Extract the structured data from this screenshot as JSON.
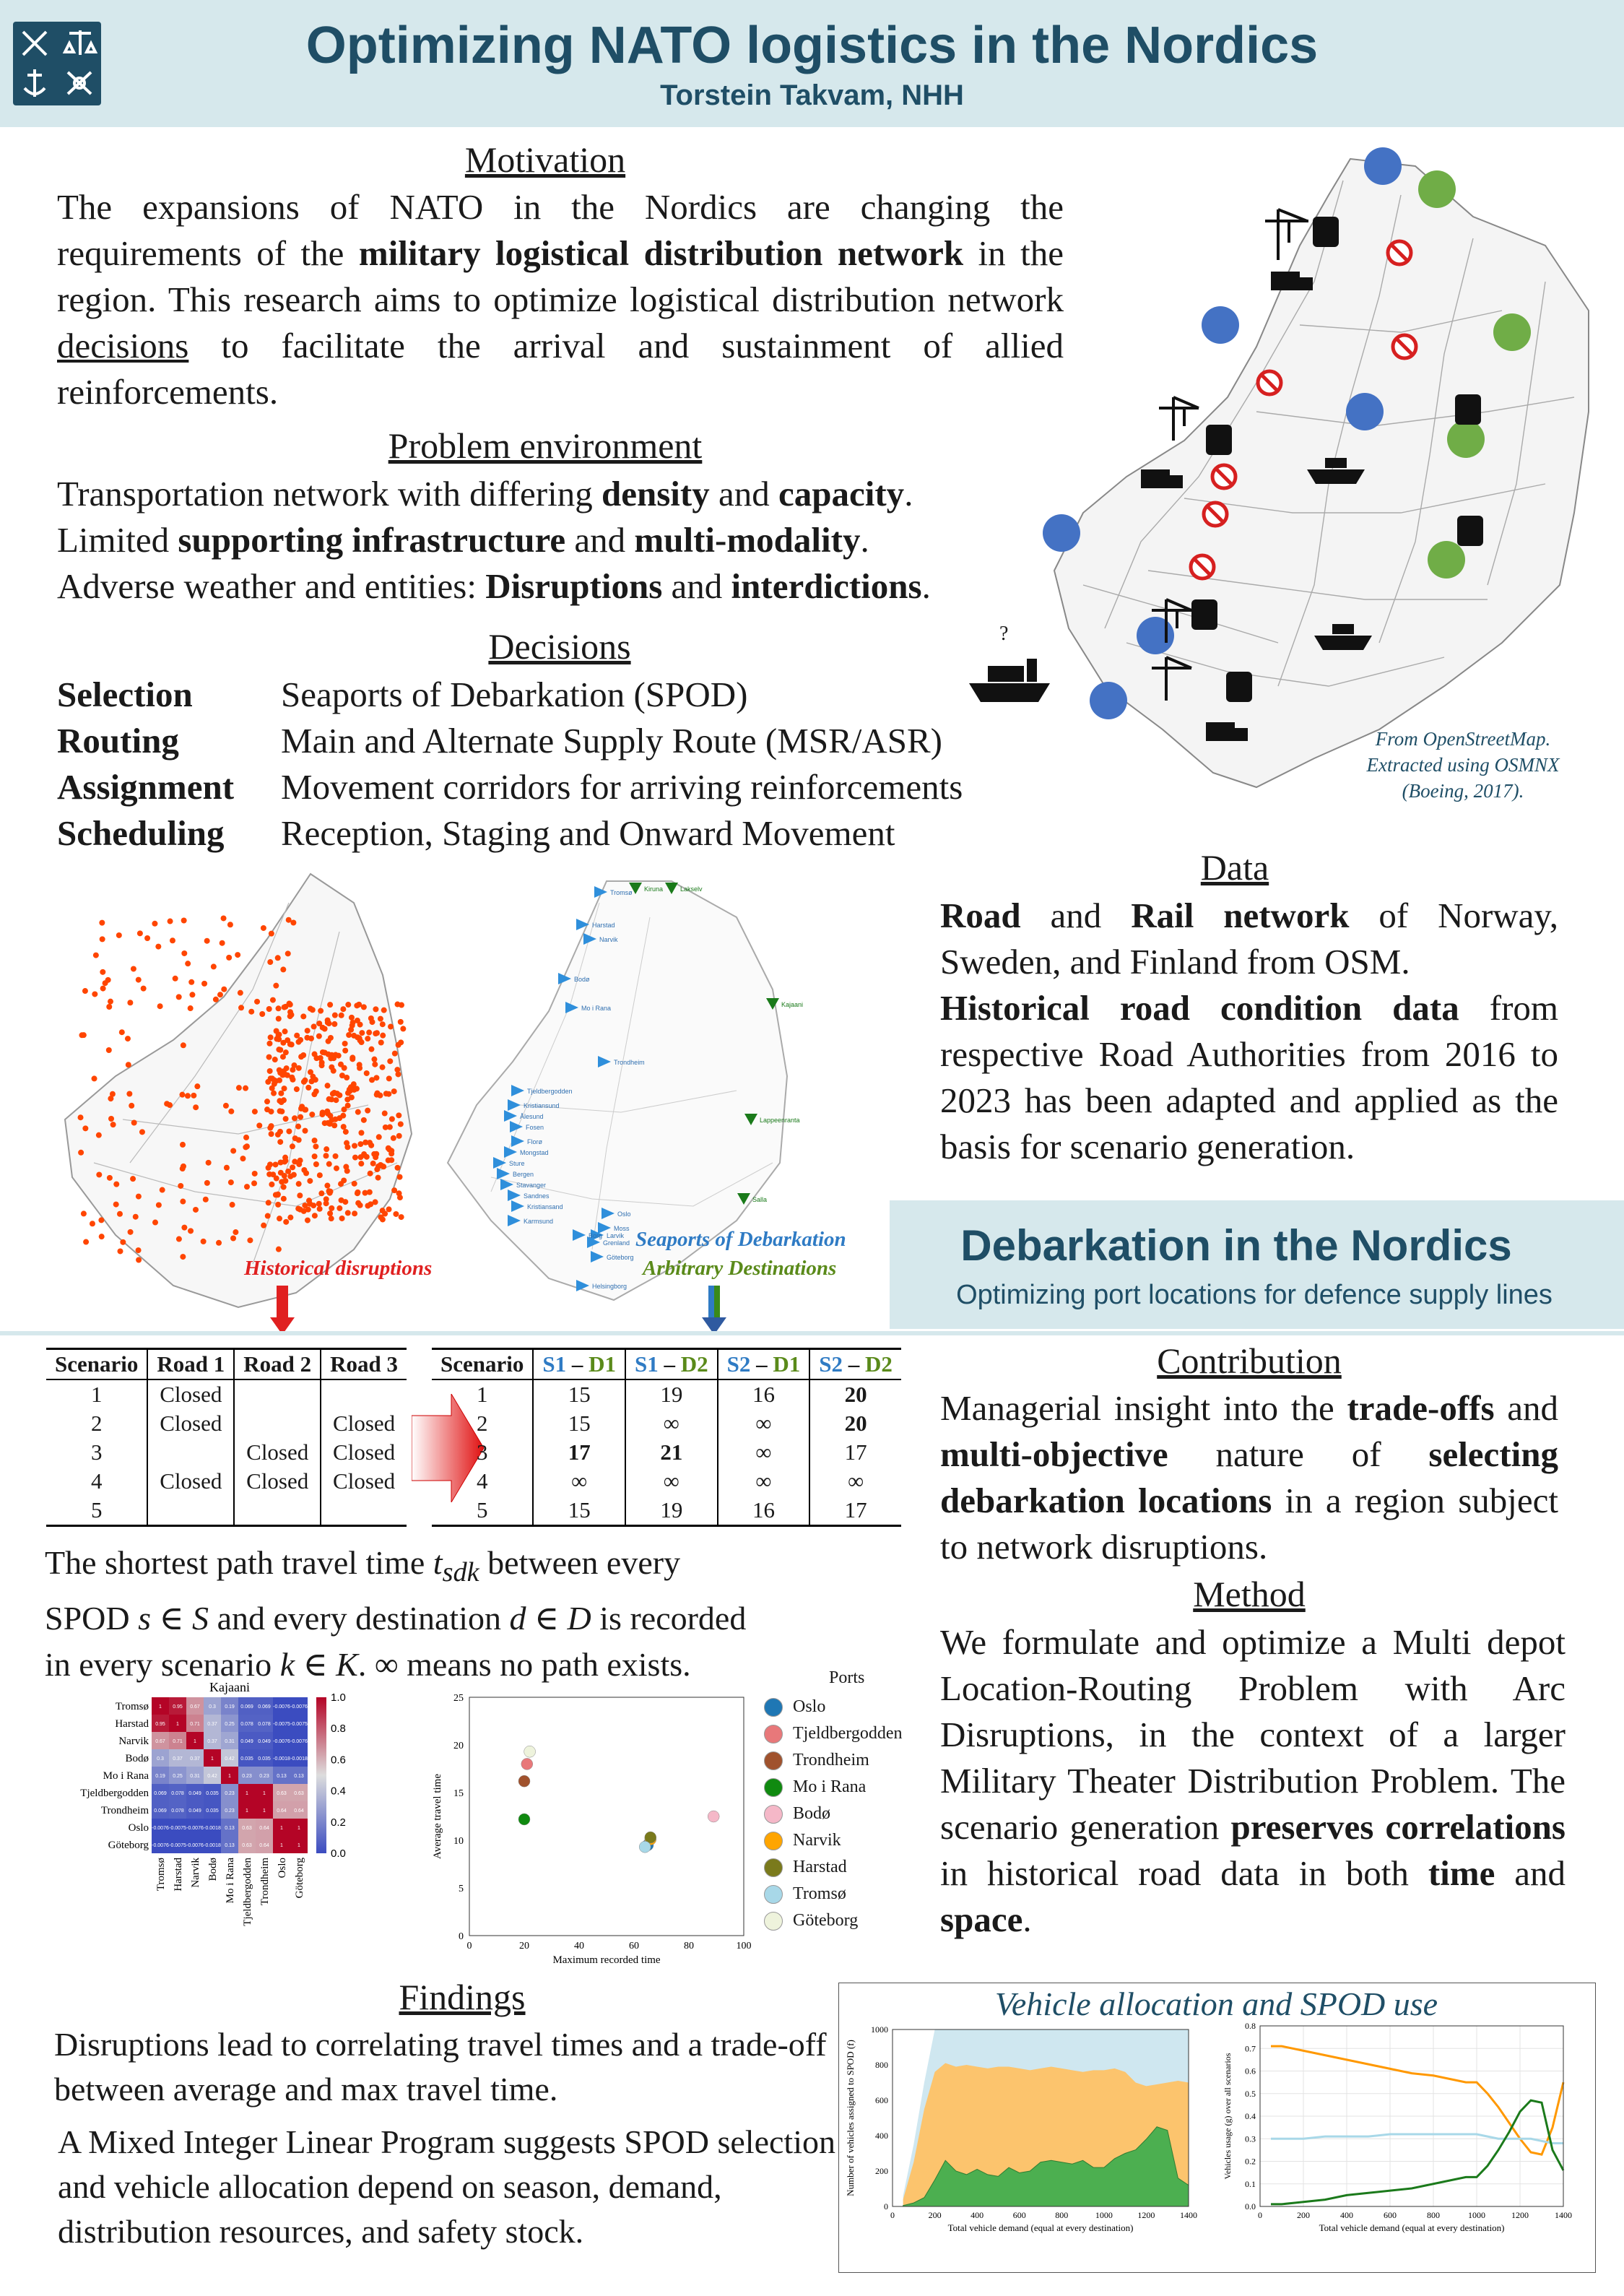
{
  "header": {
    "title": "Optimizing NATO logistics in the Nordics",
    "author": "Torstein Takvam, NHH"
  },
  "motivation": {
    "heading": "Motivation",
    "p1": "The expansions of NATO in the Nordics are changing the requirements of the ",
    "p1_bold": "military logistical distribution network",
    "p2": " in the region. This research aims to optimize logistical distribution network ",
    "p2_underline": "decisions",
    "p3": " to facilitate the arrival and sustainment of allied reinforcements."
  },
  "problem": {
    "heading": "Problem environment",
    "l1a": "Transportation network with differing ",
    "l1b": "density",
    "l1c": " and ",
    "l1d": "capacity",
    "l1e": ".",
    "l2a": "Limited ",
    "l2b": "supporting infrastructure",
    "l2c": " and ",
    "l2d": "multi-modality",
    "l2e": ".",
    "l3a": "Adverse weather and entities: ",
    "l3b": "Disruptions",
    "l3c": " and ",
    "l3d": "interdictions",
    "l3e": "."
  },
  "decisions": {
    "heading": "Decisions",
    "items": [
      {
        "term": "Selection",
        "desc": "Seaports of Debarkation (SPOD)"
      },
      {
        "term": "Routing",
        "desc": "Main and Alternate Supply Route (MSR/ASR)"
      },
      {
        "term": "Assignment",
        "desc": "Movement corridors for arriving reinforcements"
      },
      {
        "term": "Scheduling",
        "desc": "Reception, Staging and Onward Movement"
      }
    ]
  },
  "map_caption": {
    "l1": "From OpenStreetMap.",
    "l2": "Extracted using OSMNX",
    "l3": "(Boeing, 2017).",
    "question": "?"
  },
  "data_section": {
    "heading": "Data",
    "d1_bold1": "Road",
    "d1_and": " and ",
    "d1_bold2": "Rail network",
    "d1_rest": " of Norway, Sweden, and Finland from OSM.",
    "d2_bold": "Historical road condition data",
    "d2_rest": " from respective Road Authorities from 2016 to 2023 has been adapted and applied as the basis for scenario generation."
  },
  "maps": {
    "historical_label": "Historical disruptions",
    "spod_label": "Seaports of Debarkation",
    "dest_label": "Arbitrary Destinations",
    "port_names": [
      "Tromsø",
      "Harstad",
      "Narvik",
      "Bodø",
      "Mo i Rana",
      "Trondheim",
      "Tjeldbergodden",
      "Kristiansund",
      "Ålesund",
      "Fosen",
      "Florø",
      "Mongstad",
      "Sture",
      "Bergen",
      "Stavanger",
      "Sandnes",
      "Kristiansand",
      "Oslo",
      "Moss",
      "Larvik",
      "Grenland",
      "Karmsund",
      "Borg",
      "Göteborg",
      "Helsingborg"
    ],
    "dest_names": [
      "Kiruna",
      "Lakselv",
      "Kajaani",
      "Lappeenranta",
      "Salla"
    ]
  },
  "debarkation": {
    "title": "Debarkation in the Nordics",
    "subtitle": "Optimizing port locations for defence supply lines"
  },
  "table1": {
    "headers": [
      "Scenario",
      "Road 1",
      "Road 2",
      "Road 3"
    ],
    "rows": [
      [
        "1",
        "Closed",
        "",
        ""
      ],
      [
        "2",
        "Closed",
        "",
        "Closed"
      ],
      [
        "3",
        "",
        "Closed",
        "Closed"
      ],
      [
        "4",
        "Closed",
        "Closed",
        "Closed"
      ],
      [
        "5",
        "",
        "",
        ""
      ]
    ]
  },
  "table2": {
    "h_scenario": "Scenario",
    "cols": [
      {
        "s": "S1",
        "dash": " – ",
        "d": "D1"
      },
      {
        "s": "S1",
        "dash": " – ",
        "d": "D2"
      },
      {
        "s": "S2",
        "dash": " – ",
        "d": "D1"
      },
      {
        "s": "S2",
        "dash": " – ",
        "d": "D2"
      }
    ],
    "rows": [
      {
        "c": [
          "1",
          "15",
          "19",
          "16",
          "20"
        ],
        "b": [
          false,
          false,
          false,
          false,
          true
        ]
      },
      {
        "c": [
          "2",
          "15",
          "∞",
          "∞",
          "20"
        ],
        "b": [
          false,
          false,
          false,
          false,
          true
        ]
      },
      {
        "c": [
          "3",
          "17",
          "21",
          "∞",
          "17"
        ],
        "b": [
          false,
          true,
          true,
          false,
          false
        ]
      },
      {
        "c": [
          "4",
          "∞",
          "∞",
          "∞",
          "∞"
        ],
        "b": [
          false,
          false,
          false,
          false,
          false
        ]
      },
      {
        "c": [
          "5",
          "15",
          "19",
          "16",
          "17"
        ],
        "b": [
          false,
          false,
          false,
          false,
          false
        ]
      }
    ]
  },
  "shortest_path": {
    "l1a": "The shortest path travel time ",
    "l1m": "t",
    "l1sub": "sdk",
    "l1b": " between every",
    "l2a": "SPOD ",
    "l2m": "s ∈ S",
    "l2b": " and every destination ",
    "l2m2": "d ∈ D",
    "l2c": " is recorded",
    "l3a": "in every scenario ",
    "l3m": "k ∈ K",
    "l3b": ". ∞ means no path exists."
  },
  "contribution": {
    "heading": "Contribution",
    "t1": "Managerial insight into the ",
    "b1": "trade-offs",
    "t2": " and ",
    "b2": "multi-objective",
    "t3": " nature of ",
    "b3": "selecting debarkation locations",
    "t4": " in a region subject to network disruptions."
  },
  "method": {
    "heading": "Method",
    "t1": "We formulate and optimize a Multi depot Location-Routing Problem with Arc Disruptions, in the context of a larger Military Theater Distribution Problem. The scenario generation ",
    "b1": "preserves correlations",
    "t2": " in historical road data in both ",
    "b2": "time",
    "t3": " and ",
    "b3": "space",
    "t4": "."
  },
  "findings": {
    "heading": "Findings",
    "p1": "Disruptions lead to correlating travel times and a trade-off between average and max travel time.",
    "p2": "A Mixed Integer Linear Program suggests SPOD selection and vehicle allocation depend on season, demand, distribution resources, and safety stock."
  },
  "heatmap": {
    "title": "Kajaani",
    "labels": [
      "Tromsø",
      "Harstad",
      "Narvik",
      "Bodø",
      "Mo i Rana",
      "Tjeldbergodden",
      "Trondheim",
      "Oslo",
      "Göteborg"
    ],
    "matrix": [
      [
        1,
        0.95,
        0.67,
        0.3,
        0.19,
        0.069,
        0.069,
        -0.0076,
        -0.0076
      ],
      [
        0.95,
        1,
        0.71,
        0.37,
        0.25,
        0.078,
        0.078,
        -0.0075,
        -0.0075
      ],
      [
        0.67,
        0.71,
        1,
        0.37,
        0.31,
        0.049,
        0.049,
        -0.0076,
        -0.0076
      ],
      [
        0.3,
        0.37,
        0.37,
        1,
        0.42,
        0.035,
        0.035,
        -0.0018,
        -0.0018
      ],
      [
        0.19,
        0.25,
        0.31,
        0.42,
        1,
        0.23,
        0.23,
        0.13,
        0.13
      ],
      [
        0.069,
        0.078,
        0.049,
        0.035,
        0.23,
        1,
        1,
        0.63,
        0.63
      ],
      [
        0.069,
        0.078,
        0.049,
        0.035,
        0.23,
        1,
        1,
        0.64,
        0.64
      ],
      [
        -0.0076,
        -0.0075,
        -0.0076,
        -0.0018,
        0.13,
        0.63,
        0.64,
        1,
        1
      ],
      [
        -0.0076,
        -0.0075,
        -0.0076,
        -0.0018,
        0.13,
        0.63,
        0.64,
        1,
        1
      ]
    ],
    "colorbar_ticks": [
      "1.0",
      "0.8",
      "0.6",
      "0.4",
      "0.2",
      "0.0"
    ],
    "low_color": "#3b4cc0",
    "high_color": "#b40426"
  },
  "chart_data": [
    {
      "type": "scatter",
      "title": "",
      "xlabel": "Maximum recorded time",
      "ylabel": "Average travel time",
      "xlim": [
        0,
        100
      ],
      "ylim": [
        0,
        25
      ],
      "xticks": [
        "0",
        "20",
        "40",
        "60",
        "80",
        "100"
      ],
      "yticks": [
        "0",
        "5",
        "10",
        "15",
        "20",
        "25"
      ],
      "legend_title": "Ports",
      "series": [
        {
          "name": "Oslo",
          "color": "#1f77b4",
          "points": [
            [
              65,
              9.5
            ]
          ]
        },
        {
          "name": "Tjeldbergodden",
          "color": "#e8787a",
          "points": [
            [
              21,
              18
            ]
          ]
        },
        {
          "name": "Trondheim",
          "color": "#a0522d",
          "points": [
            [
              20,
              16.2
            ]
          ]
        },
        {
          "name": "Mo i Rana",
          "color": "#108a10",
          "points": [
            [
              20,
              12.2
            ]
          ]
        },
        {
          "name": "Bodø",
          "color": "#f5b8c8",
          "points": [
            [
              89,
              12.5
            ]
          ]
        },
        {
          "name": "Narvik",
          "color": "#ffa500",
          "points": [
            [
              66,
              10.1
            ]
          ]
        },
        {
          "name": "Harstad",
          "color": "#7a7a1c",
          "points": [
            [
              66,
              10.3
            ]
          ]
        },
        {
          "name": "Tromsø",
          "color": "#a8d8e8",
          "points": [
            [
              64,
              9.3
            ]
          ]
        },
        {
          "name": "Göteborg",
          "color": "#eef3dc",
          "points": [
            [
              22,
              19.3
            ]
          ]
        }
      ]
    },
    {
      "type": "area",
      "title": "Vehicle allocation and SPOD use",
      "xlabel": "Total vehicle demand (equal at every destination)",
      "ylabel": "Number of vehicles assigned to SPOD (f)",
      "xlim": [
        0,
        1400
      ],
      "ylim": [
        0,
        1000
      ],
      "xticks": [
        "0",
        "200",
        "400",
        "600",
        "800",
        "1000",
        "1200",
        "1400"
      ],
      "yticks": [
        "0",
        "200",
        "400",
        "600",
        "800",
        "1000"
      ],
      "x": [
        50,
        100,
        150,
        200,
        250,
        300,
        350,
        400,
        450,
        500,
        550,
        600,
        650,
        700,
        750,
        800,
        850,
        900,
        950,
        1000,
        1050,
        1100,
        1150,
        1200,
        1250,
        1300,
        1350,
        1400
      ],
      "series": [
        {
          "name": "",
          "color": "#cfe7f0",
          "values": [
            60,
            350,
            700,
            1000,
            1000,
            1000,
            1000,
            1000,
            1000,
            1000,
            1000,
            1000,
            1000,
            1000,
            1000,
            1000,
            1000,
            1000,
            1000,
            1000,
            1000,
            1000,
            1000,
            1000,
            1000,
            1000,
            1000,
            1000
          ]
        },
        {
          "name": "",
          "color": "#fcc46d",
          "values": [
            40,
            250,
            550,
            760,
            810,
            790,
            800,
            790,
            780,
            790,
            790,
            780,
            770,
            780,
            790,
            780,
            770,
            760,
            770,
            770,
            780,
            760,
            700,
            680,
            690,
            700,
            710,
            700
          ]
        },
        {
          "name": "",
          "color": "#4caf50",
          "values": [
            5,
            20,
            50,
            150,
            260,
            200,
            180,
            210,
            180,
            170,
            220,
            190,
            200,
            250,
            260,
            250,
            240,
            260,
            220,
            220,
            270,
            300,
            320,
            380,
            450,
            430,
            160,
            120
          ]
        }
      ]
    },
    {
      "type": "line",
      "title": "",
      "xlabel": "Total vehicle demand (equal at every destination)",
      "ylabel": "Vehicles usage (g) over all scenarios",
      "xlim": [
        0,
        1400
      ],
      "ylim": [
        0,
        0.8
      ],
      "xticks": [
        "0",
        "200",
        "400",
        "600",
        "800",
        "1000",
        "1200",
        "1400"
      ],
      "yticks": [
        "0.0",
        "0.1",
        "0.2",
        "0.3",
        "0.4",
        "0.5",
        "0.6",
        "0.7",
        "0.8"
      ],
      "x": [
        50,
        100,
        200,
        300,
        400,
        500,
        600,
        700,
        800,
        900,
        950,
        1000,
        1050,
        1100,
        1150,
        1200,
        1250,
        1300,
        1350,
        1400
      ],
      "series": [
        {
          "name": "",
          "color": "#ff9800",
          "values": [
            0.71,
            0.71,
            0.69,
            0.67,
            0.65,
            0.63,
            0.61,
            0.59,
            0.58,
            0.56,
            0.55,
            0.55,
            0.5,
            0.44,
            0.37,
            0.3,
            0.24,
            0.23,
            0.35,
            0.55
          ]
        },
        {
          "name": "",
          "color": "#a8d8e8",
          "values": [
            0.3,
            0.3,
            0.3,
            0.31,
            0.31,
            0.31,
            0.32,
            0.32,
            0.32,
            0.32,
            0.32,
            0.32,
            0.31,
            0.3,
            0.3,
            0.3,
            0.3,
            0.29,
            0.28,
            0.28
          ]
        },
        {
          "name": "",
          "color": "#1b7a1b",
          "values": [
            0.01,
            0.01,
            0.02,
            0.03,
            0.05,
            0.06,
            0.07,
            0.08,
            0.1,
            0.12,
            0.13,
            0.13,
            0.18,
            0.25,
            0.33,
            0.42,
            0.47,
            0.46,
            0.25,
            0.16
          ]
        }
      ]
    }
  ]
}
